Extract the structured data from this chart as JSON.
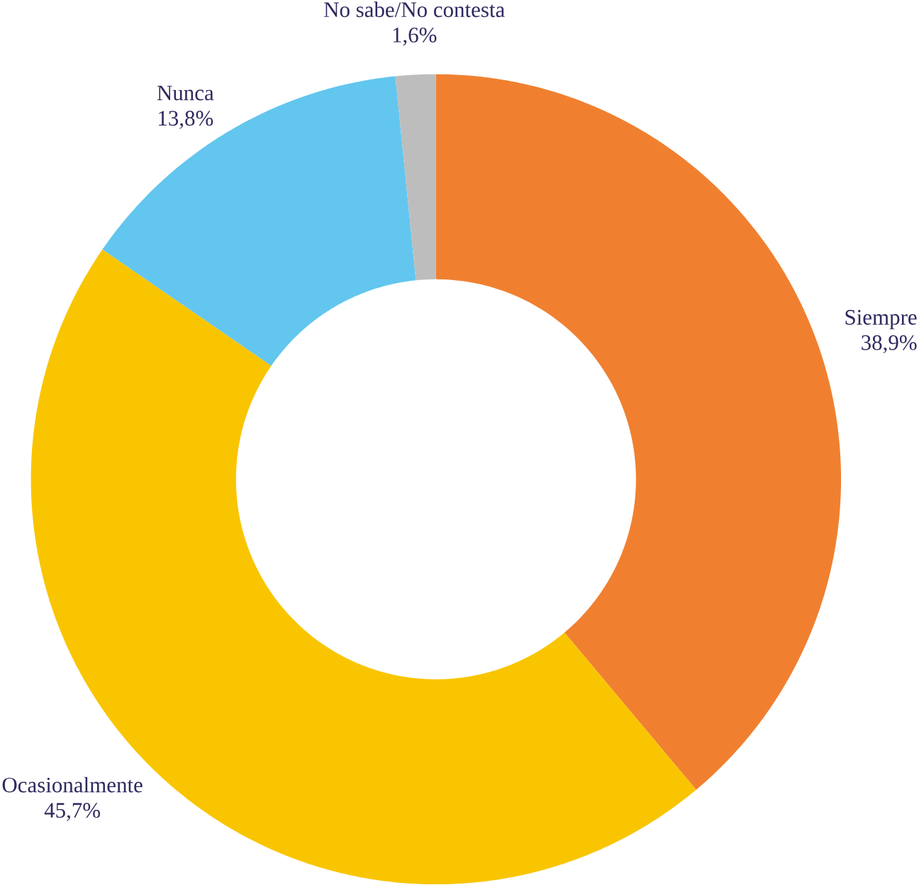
{
  "chart_data": {
    "type": "donut",
    "categories": [
      "Siempre",
      "Ocasionalmente",
      "Nunca",
      "No sabe/No contesta"
    ],
    "values": [
      38.9,
      45.7,
      13.8,
      1.6
    ],
    "value_labels": [
      "38,9%",
      "45,7%",
      "13,8%",
      "1,6%"
    ],
    "colors": [
      "#f08030",
      "#f9c500",
      "#62c6ee",
      "#bdbdbd"
    ]
  }
}
